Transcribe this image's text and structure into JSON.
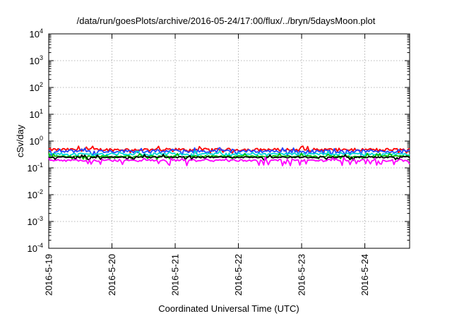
{
  "chart_data": {
    "type": "line",
    "title": "/data/run/goesPlots/archive/2016-05-24/17:00/flux/../bryn/5daysMoon.plot",
    "xlabel": "Coordinated Universal Time (UTC)",
    "ylabel": "cSv/day",
    "yscale": "log",
    "ylim": [
      0.0001,
      10000
    ],
    "xlim": [
      "2016-05-19 00:00",
      "2016-05-24 17:00"
    ],
    "grid": true,
    "x_ticks": [
      "2016-5-19",
      "2016-5-20",
      "2016-5-21",
      "2016-5-22",
      "2016-5-23",
      "2016-5-24"
    ],
    "y_ticks": [
      {
        "base": "10",
        "exp": "-4"
      },
      {
        "base": "10",
        "exp": "-3"
      },
      {
        "base": "10",
        "exp": "-2"
      },
      {
        "base": "10",
        "exp": "-1"
      },
      {
        "base": "10",
        "exp": "0"
      },
      {
        "base": "10",
        "exp": "1"
      },
      {
        "base": "10",
        "exp": "2"
      },
      {
        "base": "10",
        "exp": "3"
      },
      {
        "base": "10",
        "exp": "4"
      }
    ],
    "series": [
      {
        "color": "#ff0000",
        "level": 0.48,
        "amp": 0.1
      },
      {
        "color": "#2244ff",
        "level": 0.42,
        "amp": 0.11
      },
      {
        "color": "#00d8d8",
        "level": 0.33,
        "amp": 0.07
      },
      {
        "color": "#00c000",
        "level": 0.27,
        "amp": 0.05
      },
      {
        "color": "#000000",
        "level": 0.25,
        "amp": 0.05
      },
      {
        "color": "#ff00ff",
        "level": 0.19,
        "amp": 0.08
      }
    ]
  }
}
